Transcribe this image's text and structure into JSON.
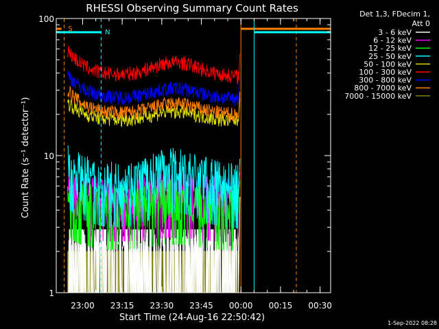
{
  "chart_data": {
    "type": "line",
    "title": "RHESSI Observing Summary Count Rates",
    "xlabel": "Start Time (24-Aug-16 22:50:42)",
    "ylabel": "Count Rate (s⁻¹ detector⁻¹)",
    "y_scale": "log",
    "ylim": [
      1,
      100
    ],
    "y_ticks": [
      "1",
      "10",
      "100"
    ],
    "x_ticks": [
      "23:00",
      "23:15",
      "23:30",
      "23:45",
      "00:00",
      "00:15",
      "00:30"
    ],
    "x_tick_minutes": [
      10,
      25,
      40,
      55,
      70,
      85,
      100
    ],
    "xlim_minutes": [
      0,
      104
    ],
    "legend_header": [
      "Det 1,3, FDecim 1,",
      "Att 0"
    ],
    "legend_position": "top-right",
    "series": [
      {
        "name": "3 - 6 keV",
        "color": "#ffffff",
        "level_start": 2.5,
        "level_mid": 2.4,
        "level_bump": 2.5
      },
      {
        "name": "6 - 12 keV",
        "color": "#ff00ff",
        "level_start": 6.0,
        "level_mid": 5.2,
        "level_bump": 5.6
      },
      {
        "name": "12 - 25 keV",
        "color": "#00ff00",
        "level_start": 5.8,
        "level_mid": 4.5,
        "level_bump": 5.0
      },
      {
        "name": "25 - 50 keV",
        "color": "#00ffff",
        "level_start": 9.5,
        "level_mid": 6.5,
        "level_bump": 8.5
      },
      {
        "name": "50 - 100 keV",
        "color": "#dddd00",
        "level_start": 25,
        "level_mid": 18,
        "level_bump": 21
      },
      {
        "name": "100 - 300 keV",
        "color": "#ff0000",
        "level_start": 60,
        "level_mid": 38,
        "level_bump": 48
      },
      {
        "name": "300 - 800 keV",
        "color": "#0000ff",
        "level_start": 40,
        "level_mid": 26,
        "level_bump": 31
      },
      {
        "name": "800 - 7000 keV",
        "color": "#ff7f00",
        "level_start": 31,
        "level_mid": 20,
        "level_bump": 24
      },
      {
        "name": "7000 - 15000 keV",
        "color": "#808000",
        "level_start": 2.0,
        "level_mid": 2.0,
        "level_bump": 2.0
      }
    ],
    "data_window_minutes": [
      4,
      70
    ],
    "flags": [
      {
        "label": "S",
        "color": "#ff7f00",
        "interval_minutes": [
          [
            0,
            2
          ],
          [
            70,
            104
          ]
        ],
        "marker_minutes": [
          3,
          91
        ]
      },
      {
        "label": "N",
        "color": "#00ffff",
        "interval_minutes": [
          [
            0,
            17
          ],
          [
            75,
            104
          ]
        ],
        "marker_minutes": [
          0,
          17,
          75
        ]
      }
    ]
  },
  "footer": {
    "timestamp": "1-Sep-2022 08:28"
  }
}
